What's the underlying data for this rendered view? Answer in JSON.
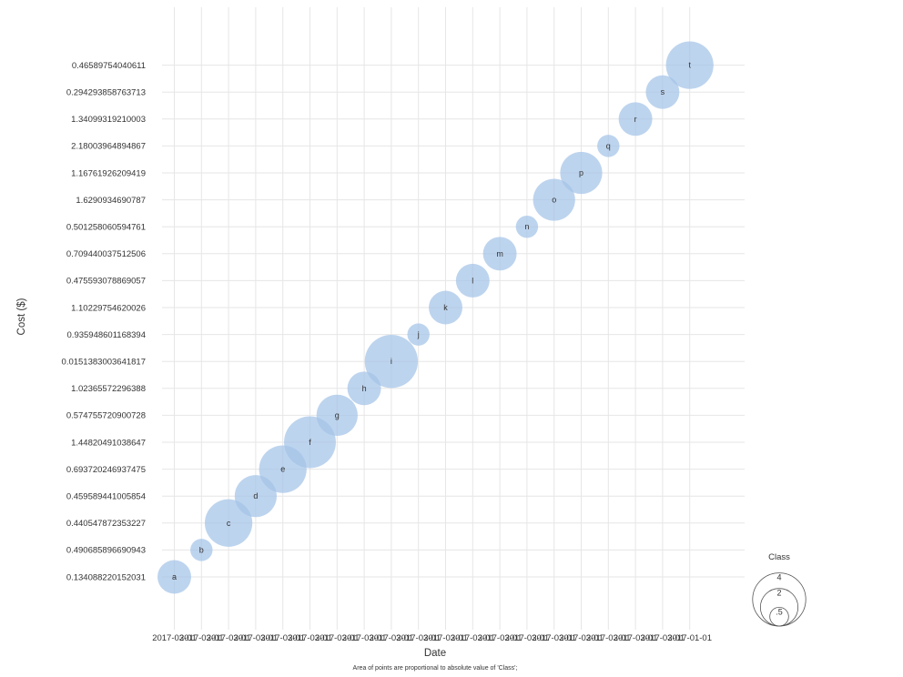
{
  "chart_data": {
    "type": "scatter",
    "xlabel": "Date",
    "ylabel": "Cost ($)",
    "caption": "Area of points are proportional to absolute value of 'Class';",
    "x_ticks": [
      "2017-03-01",
      "2017-03-01",
      "2017-03-01",
      "2017-03-01",
      "2017-03-01",
      "2017-03-01",
      "2017-03-01",
      "2017-03-01",
      "2017-03-01",
      "2017-03-01",
      "2017-03-01",
      "2017-03-01",
      "2017-03-01",
      "2017-03-01",
      "2017-03-01",
      "2017-03-01",
      "2017-03-01",
      "2017-03-01",
      "2017-03-01",
      "2017-01-01"
    ],
    "y_categories": [
      "0.134088220152031",
      "0.490685896690943",
      "0.440547872353227",
      "0.459589441005854",
      "0.693720246937475",
      "1.44820491038647",
      "0.574755720900728",
      "1.02365572296388",
      "0.0151383003641817",
      "0.935948601168394",
      "1.10229754620026",
      "0.475593078869057",
      "0.709440037512506",
      "0.501258060594761",
      "1.6290934690787",
      "1.16761926209419",
      "2.18003964894867",
      "1.34099319210003",
      "0.294293858763713",
      "0.46589754040611"
    ],
    "points": [
      {
        "label": "a",
        "class": 1.6
      },
      {
        "label": "b",
        "class": 0.7
      },
      {
        "label": "c",
        "class": 3.2
      },
      {
        "label": "d",
        "class": 2.5
      },
      {
        "label": "e",
        "class": 3.2
      },
      {
        "label": "f",
        "class": 3.8
      },
      {
        "label": "g",
        "class": 2.4
      },
      {
        "label": "h",
        "class": 1.6
      },
      {
        "label": "i",
        "class": 4.0
      },
      {
        "label": "j",
        "class": 0.7
      },
      {
        "label": "k",
        "class": 1.6
      },
      {
        "label": "l",
        "class": 1.6
      },
      {
        "label": "m",
        "class": 1.6
      },
      {
        "label": "n",
        "class": 0.7
      },
      {
        "label": "o",
        "class": 2.5
      },
      {
        "label": "p",
        "class": 2.5
      },
      {
        "label": "q",
        "class": 0.7
      },
      {
        "label": "r",
        "class": 1.6
      },
      {
        "label": "s",
        "class": 1.6
      },
      {
        "label": "t",
        "class": 3.2
      }
    ],
    "legend": {
      "title": "Class",
      "entries": [
        {
          "label": "4",
          "value": 4
        },
        {
          "label": "2",
          "value": 2
        },
        {
          "label": ".5",
          "value": 0.5
        }
      ]
    },
    "grid": true,
    "bubble_color": "#a4c4e8"
  }
}
